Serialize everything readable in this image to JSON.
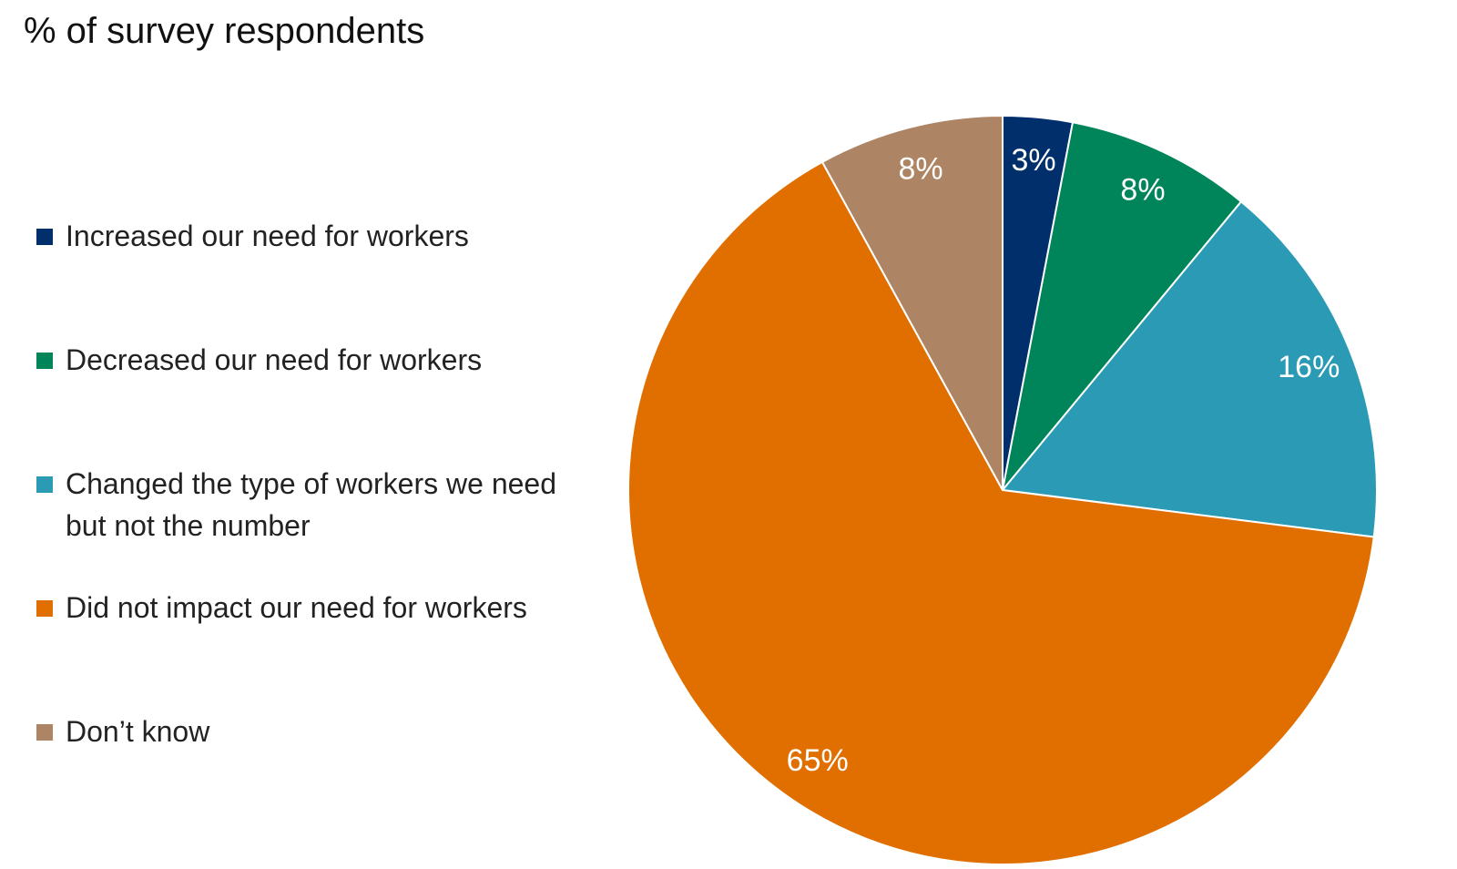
{
  "chart_data": {
    "type": "pie",
    "title": "% of survey respondents",
    "categories": [
      "Increased our need for workers",
      "Decreased our need for workers",
      "Changed the type of workers we need but not the number",
      "Did not impact our need for workers",
      "Don’t know"
    ],
    "values": [
      3,
      8,
      16,
      65,
      8
    ],
    "value_labels": [
      "3%",
      "8%",
      "16%",
      "65%",
      "8%"
    ],
    "colors": [
      "#002f6c",
      "#00845a",
      "#2b9bb5",
      "#e06f00",
      "#ae8564"
    ],
    "legend": "left"
  }
}
